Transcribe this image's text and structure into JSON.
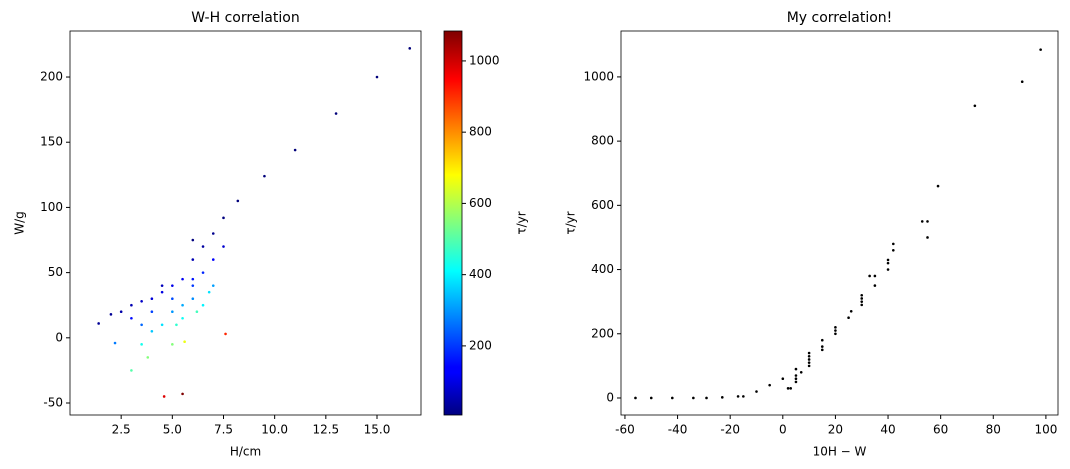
{
  "chart_data": [
    {
      "type": "scatter",
      "title": "W-H correlation",
      "xlabel": "H/cm",
      "ylabel": "W/g",
      "x": [
        16.6,
        15.0,
        13.0,
        11.0,
        9.5,
        8.2,
        7.5,
        7.0,
        6.5,
        6.0,
        7.0,
        6.5,
        5.5,
        5.0,
        4.5,
        4.0,
        3.5,
        3.0,
        2.5,
        2.0,
        1.4,
        5.0,
        5.5,
        6.0,
        7.0,
        4.0,
        4.5,
        5.5,
        3.5,
        5.0,
        3.0,
        5.6,
        7.6,
        4.6,
        5.5,
        6.0,
        7.5,
        4.5,
        3.0,
        2.2,
        6.5,
        6.8,
        4.0,
        3.5,
        5.0,
        6.0,
        5.2,
        6.2,
        3.8,
        6.0
      ],
      "values": [
        222,
        200,
        172,
        144,
        124,
        105,
        92,
        80,
        70,
        60,
        60,
        50,
        45,
        40,
        35,
        30,
        28,
        25,
        20,
        18,
        11,
        20,
        25,
        30,
        40,
        5,
        10,
        15,
        -5,
        -5,
        -25,
        -3,
        3,
        -45,
        -43,
        45,
        70,
        40,
        15,
        -4,
        25,
        35,
        20,
        10,
        30,
        40,
        10,
        20,
        -15,
        75
      ],
      "color_values": [
        0,
        0,
        0,
        0,
        0,
        2,
        5,
        20,
        40,
        60,
        140,
        180,
        130,
        120,
        110,
        100,
        80,
        60,
        50,
        30,
        30,
        300,
        320,
        290,
        310,
        350,
        380,
        420,
        430,
        550,
        500,
        660,
        910,
        985,
        1085,
        160,
        90,
        70,
        150,
        270,
        400,
        380,
        210,
        250,
        220,
        200,
        460,
        480,
        550,
        5
      ],
      "colormap": "jet",
      "clim": [
        6,
        1084
      ],
      "cticks": [
        200,
        400,
        600,
        800,
        1000
      ],
      "clabel": "τ/yr",
      "xlim": [
        0,
        17.15
      ],
      "xticks": [
        2.5,
        {
          "value": 5,
          "label": "5.0"
        },
        7.5,
        {
          "value": 10,
          "label": "10.0"
        },
        12.5,
        {
          "value": 15,
          "label": "15.0"
        }
      ],
      "ylim": [
        -59.2,
        235.3
      ],
      "yticks": [
        -50,
        0,
        50,
        100,
        150,
        200
      ]
    },
    {
      "type": "scatter",
      "title": "My correlation!",
      "xlabel": "10H − W",
      "ylabel": "τ/yr",
      "color": "#000000",
      "x": [
        -56,
        -50,
        -42,
        -34,
        -29,
        -23,
        -17,
        -10,
        -5,
        0,
        10,
        15,
        10,
        10,
        10,
        10,
        7,
        5,
        5,
        2,
        3,
        30,
        30,
        30,
        30,
        35,
        35,
        40,
        40,
        55,
        55,
        59,
        73,
        91,
        98,
        15,
        5,
        5,
        15,
        26,
        40,
        33,
        20,
        25,
        20,
        20,
        42,
        42,
        53,
        -15
      ],
      "values": [
        0,
        0,
        0,
        0,
        0,
        2,
        5,
        20,
        40,
        60,
        140,
        180,
        130,
        120,
        110,
        100,
        80,
        60,
        50,
        30,
        30,
        300,
        320,
        290,
        310,
        350,
        380,
        420,
        430,
        550,
        500,
        660,
        910,
        985,
        1085,
        160,
        90,
        70,
        150,
        270,
        400,
        380,
        210,
        250,
        220,
        200,
        460,
        480,
        550,
        5
      ],
      "xlim": [
        -61.5,
        104.6
      ],
      "xticks": [
        -60,
        -40,
        -20,
        0,
        20,
        40,
        60,
        80,
        100
      ],
      "ylim": [
        -53,
        1143
      ],
      "yticks": [
        0,
        200,
        400,
        600,
        800,
        1000
      ]
    }
  ]
}
